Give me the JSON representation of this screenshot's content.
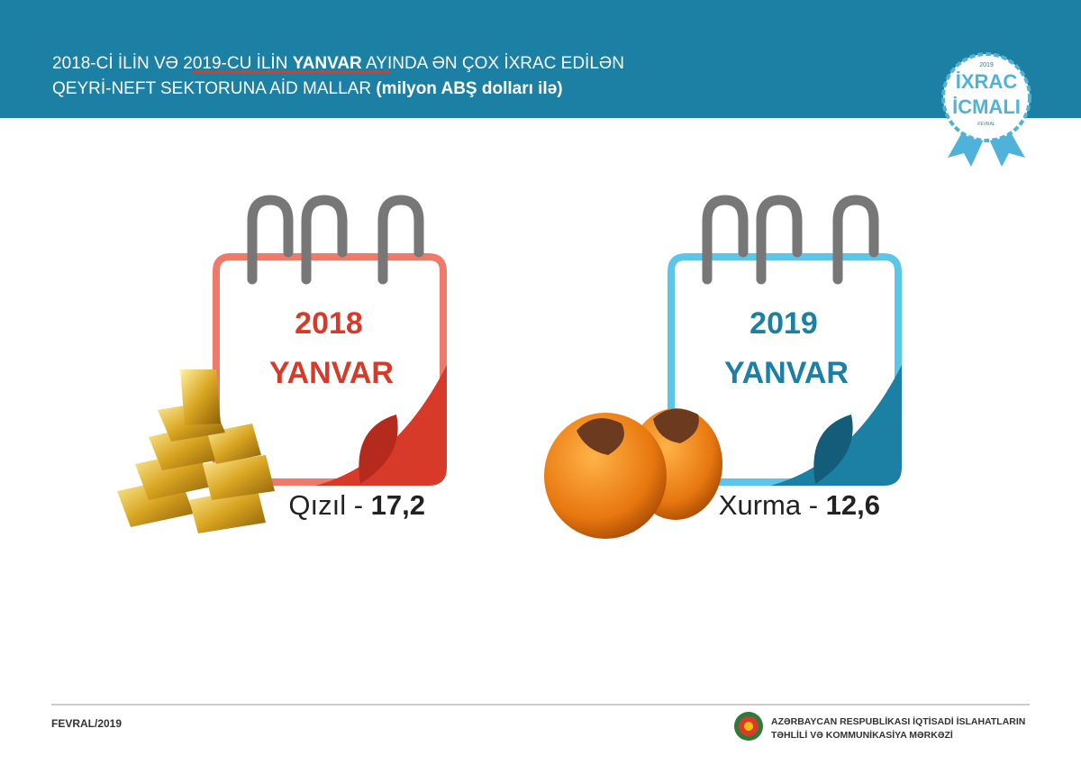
{
  "header": {
    "title_line1": [
      "2018-Cİ İLİN VƏ ",
      "2019-CU İLİN",
      " ",
      "YANVAR",
      " AYINDA ƏN ÇOX İXRAC EDİLƏN"
    ],
    "title_line2": [
      "QEYRİ-NEFT SEKTORUNA AİD MALLAR ",
      "(milyon ABŞ dolları ilə)"
    ]
  },
  "badge": {
    "year": "2019",
    "line1": "İXRAC",
    "line2": "İCMALI",
    "month": "FEVRAL"
  },
  "cards": [
    {
      "year": "2018",
      "month": "YANVAR",
      "product": "Qızıl",
      "separator": " - ",
      "value": "17,2"
    },
    {
      "year": "2019",
      "month": "YANVAR",
      "product": "Xurma",
      "separator": " - ",
      "value": "12,6"
    }
  ],
  "footer": {
    "date": "FEVRAL/2019",
    "org_line1": "AZƏRBAYCAN RESPUBLİKASI İQTİSADİ İSLAHATLARIN",
    "org_line2": "TƏHLİLİ VƏ KOMMUNİKASİYA MƏRKƏZİ"
  }
}
